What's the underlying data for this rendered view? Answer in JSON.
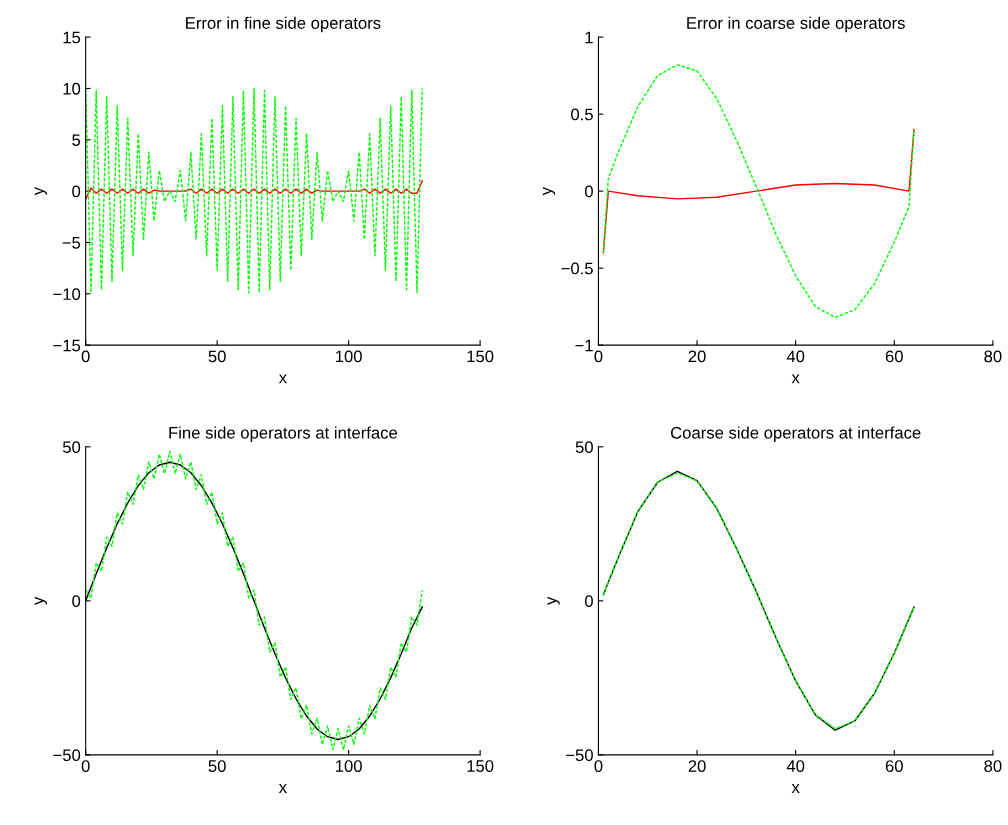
{
  "chart_data": [
    {
      "type": "line",
      "title": "Error in fine side operators",
      "xlabel": "x",
      "ylabel": "y",
      "xlim": [
        0,
        150
      ],
      "xticks": [
        0,
        50,
        100,
        150
      ],
      "ylim": [
        -15,
        15
      ],
      "yticks": [
        -15,
        -10,
        -5,
        0,
        5,
        10,
        15
      ],
      "x": [
        0,
        2,
        4,
        6,
        8,
        10,
        12,
        14,
        16,
        18,
        20,
        22,
        24,
        26,
        28,
        30,
        32,
        34,
        36,
        38,
        40,
        42,
        44,
        46,
        48,
        50,
        52,
        54,
        56,
        58,
        60,
        62,
        64,
        66,
        68,
        70,
        72,
        74,
        76,
        78,
        80,
        82,
        84,
        86,
        88,
        90,
        92,
        94,
        96,
        98,
        100,
        102,
        104,
        106,
        108,
        110,
        112,
        114,
        116,
        118,
        120,
        122,
        124,
        126,
        128
      ],
      "series": [
        {
          "color": "#00ff00",
          "line_style": "dashed",
          "values": [
            10,
            -9.9,
            9.8,
            -9.6,
            9.2,
            -8.8,
            8.3,
            -7.7,
            7.1,
            -6.3,
            5.6,
            -4.7,
            3.8,
            -2.9,
            2.0,
            -1.0,
            0,
            -1.0,
            2.0,
            -2.9,
            3.8,
            -4.7,
            5.6,
            -6.3,
            7.1,
            -7.7,
            8.3,
            -8.8,
            9.2,
            -9.6,
            9.8,
            -9.9,
            10,
            -9.9,
            9.8,
            -9.6,
            9.2,
            -8.8,
            8.3,
            -7.7,
            7.1,
            -6.3,
            5.6,
            -4.7,
            3.8,
            -2.9,
            2.0,
            -1.0,
            0,
            -1.0,
            2.0,
            -2.9,
            3.8,
            -4.7,
            5.6,
            -6.3,
            7.1,
            -7.7,
            8.3,
            -8.8,
            9.2,
            -9.6,
            9.8,
            -9.9,
            10
          ]
        },
        {
          "color": "#ff0000",
          "line_style": "solid",
          "values": [
            -0.8,
            0.3,
            -0.2,
            0.2,
            -0.2,
            0.2,
            -0.2,
            0.2,
            -0.2,
            0.2,
            -0.2,
            0.2,
            -0.2,
            0.1,
            0,
            0,
            0,
            0,
            0,
            0,
            0.2,
            -0.2,
            0.2,
            -0.2,
            0.2,
            -0.2,
            0.2,
            -0.2,
            0.2,
            -0.2,
            0.2,
            -0.2,
            0.2,
            -0.2,
            0.2,
            -0.2,
            0.2,
            -0.2,
            0.2,
            -0.2,
            0.2,
            -0.2,
            0.2,
            -0.2,
            0.1,
            0,
            0,
            0,
            0,
            0,
            0,
            0,
            0,
            0.2,
            -0.2,
            0.2,
            -0.2,
            0.2,
            -0.2,
            0.2,
            -0.2,
            0.2,
            -0.2,
            -0.2,
            1.0
          ]
        }
      ]
    },
    {
      "type": "line",
      "title": "Error in coarse side operators",
      "xlabel": "x",
      "ylabel": "y",
      "xlim": [
        0,
        80
      ],
      "xticks": [
        0,
        20,
        40,
        60,
        80
      ],
      "ylim": [
        -1,
        1
      ],
      "yticks": [
        -1,
        -0.5,
        0,
        0.5,
        1
      ],
      "series": [
        {
          "color": "#00ff00",
          "line_style": "dashed",
          "x": [
            1,
            2,
            4,
            8,
            12,
            16,
            20,
            24,
            28,
            32,
            36,
            40,
            44,
            48,
            52,
            56,
            60,
            63,
            64
          ],
          "values": [
            -0.4,
            0.08,
            0.25,
            0.55,
            0.75,
            0.82,
            0.78,
            0.6,
            0.33,
            0.03,
            -0.28,
            -0.55,
            -0.75,
            -0.82,
            -0.77,
            -0.6,
            -0.33,
            -0.1,
            0.4
          ]
        },
        {
          "color": "#ff0000",
          "line_style": "solid",
          "x": [
            1,
            2,
            8,
            16,
            24,
            32,
            40,
            48,
            56,
            63,
            64
          ],
          "values": [
            -0.4,
            0,
            -0.03,
            -0.05,
            -0.04,
            0,
            0.04,
            0.05,
            0.04,
            0,
            0.4
          ]
        }
      ]
    },
    {
      "type": "line",
      "title": "Fine side operators at interface",
      "xlabel": "x",
      "ylabel": "y",
      "xlim": [
        0,
        150
      ],
      "xticks": [
        0,
        50,
        100,
        150
      ],
      "ylim": [
        -50,
        50
      ],
      "yticks": [
        -50,
        0,
        50
      ],
      "series": [
        {
          "color": "#00ff00",
          "line_style": "dashed",
          "x": [
            0,
            2,
            4,
            6,
            8,
            10,
            12,
            14,
            16,
            18,
            20,
            22,
            24,
            26,
            28,
            30,
            32,
            34,
            36,
            38,
            40,
            42,
            44,
            46,
            48,
            50,
            52,
            54,
            56,
            58,
            60,
            62,
            64,
            66,
            68,
            70,
            72,
            74,
            76,
            78,
            80,
            82,
            84,
            86,
            88,
            90,
            92,
            94,
            96,
            98,
            100,
            102,
            104,
            106,
            108,
            110,
            112,
            114,
            116,
            118,
            120,
            122,
            124,
            126,
            128
          ],
          "values": [
            3.5,
            0.9,
            12.3,
            9.6,
            20.7,
            17.7,
            28.5,
            25,
            35.3,
            31.3,
            40.9,
            36.2,
            45.1,
            39.6,
            47.6,
            41.3,
            48.5,
            41.3,
            47.6,
            39.6,
            45.1,
            36.2,
            40.9,
            31.3,
            35.3,
            25,
            28.5,
            17.7,
            20.7,
            9.6,
            12.3,
            0.9,
            3.5,
            -7.9,
            -5.3,
            -16.6,
            -13.7,
            -24.7,
            -21.5,
            -32,
            -28.3,
            -38.3,
            -33.9,
            -43.2,
            -38.1,
            -46.6,
            -40.6,
            -48.3,
            -41.5,
            -48.3,
            -40.6,
            -46.6,
            -38.1,
            -43.2,
            -33.9,
            -38.3,
            -28.3,
            -32,
            -21.5,
            -24.7,
            -13.7,
            -16.6,
            -5.3,
            -7.9,
            3.5
          ]
        },
        {
          "color": "#000000",
          "line_style": "solid",
          "x": [
            0,
            4,
            8,
            12,
            16,
            20,
            24,
            28,
            32,
            36,
            40,
            44,
            48,
            52,
            56,
            60,
            64,
            68,
            72,
            76,
            80,
            84,
            88,
            92,
            96,
            100,
            104,
            108,
            112,
            116,
            120,
            124,
            128
          ],
          "values": [
            0,
            8.8,
            17.2,
            25,
            31.8,
            37.4,
            41.6,
            44.1,
            45,
            44.1,
            41.6,
            37.4,
            31.8,
            25,
            17.2,
            8.8,
            0,
            -8.8,
            -17.2,
            -25,
            -31.8,
            -37.4,
            -41.6,
            -44.1,
            -45,
            -44.1,
            -41.6,
            -37.4,
            -31.8,
            -25,
            -17.2,
            -8.8,
            -2
          ]
        }
      ]
    },
    {
      "type": "line",
      "title": "Coarse side operators at interface",
      "xlabel": "x",
      "ylabel": "y",
      "xlim": [
        0,
        80
      ],
      "xticks": [
        0,
        20,
        40,
        60,
        80
      ],
      "ylim": [
        -50,
        50
      ],
      "yticks": [
        -50,
        0,
        50
      ],
      "x": [
        1,
        4,
        8,
        12,
        16,
        20,
        24,
        28,
        32,
        36,
        40,
        44,
        48,
        52,
        56,
        60,
        64
      ],
      "series": [
        {
          "color": "#00ff00",
          "line_style": "dashed",
          "values": [
            2,
            14,
            29,
            38.5,
            41.5,
            39,
            30,
            17,
            3,
            -12,
            -26,
            -37,
            -41.5,
            -39,
            -30,
            -17,
            -2
          ]
        },
        {
          "color": "#000000",
          "line_style": "solid",
          "values": [
            2,
            14,
            29,
            38.5,
            42,
            39,
            30,
            17,
            3,
            -12,
            -26,
            -37,
            -42,
            -39,
            -30,
            -17,
            -2
          ]
        }
      ]
    }
  ]
}
